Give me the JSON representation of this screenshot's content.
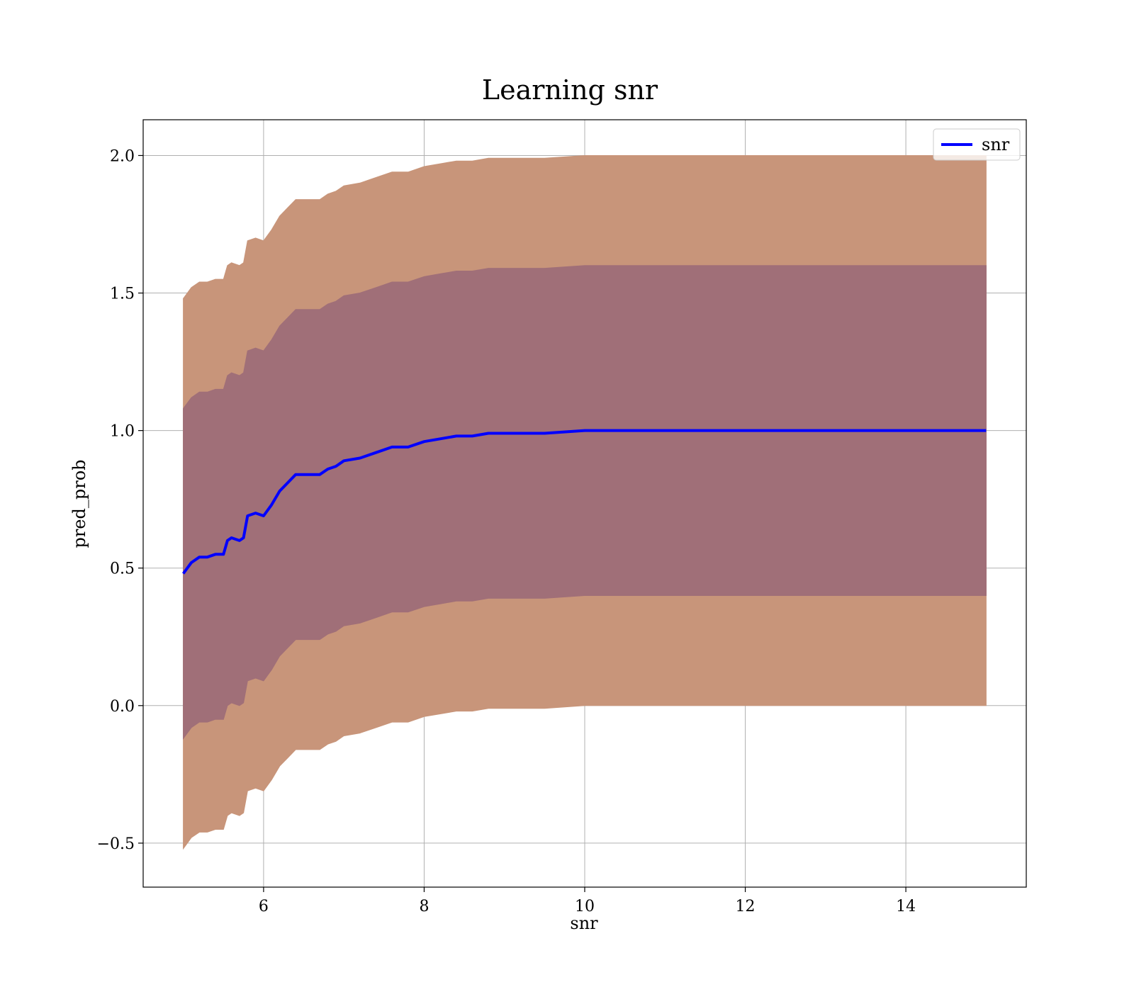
{
  "chart_data": {
    "type": "area",
    "title": "Learning snr",
    "xlabel": "snr",
    "ylabel": "pred_prob",
    "xlim": [
      4.5,
      15.5
    ],
    "ylim": [
      -0.66,
      2.13
    ],
    "xticks": [
      6,
      8,
      10,
      12,
      14
    ],
    "xtick_labels": [
      "6",
      "8",
      "10",
      "12",
      "14"
    ],
    "yticks": [
      -0.5,
      0.0,
      0.5,
      1.0,
      1.5,
      2.0
    ],
    "ytick_labels": [
      "−0.5",
      "0.0",
      "0.5",
      "1.0",
      "1.5",
      "2.0"
    ],
    "grid": true,
    "legend": {
      "position": "upper right",
      "entries": [
        "snr"
      ]
    },
    "colors": {
      "line": "#0000ff",
      "outer_band": "#c8957a",
      "inner_band": "#a06f78",
      "grid": "#b0b0b0"
    },
    "series": [
      {
        "name": "snr",
        "x": [
          5.0,
          5.05,
          5.1,
          5.2,
          5.3,
          5.4,
          5.5,
          5.55,
          5.6,
          5.7,
          5.75,
          5.8,
          5.9,
          6.0,
          6.1,
          6.2,
          6.3,
          6.4,
          6.5,
          6.6,
          6.7,
          6.8,
          6.9,
          7.0,
          7.2,
          7.4,
          7.6,
          7.8,
          8.0,
          8.2,
          8.4,
          8.6,
          8.8,
          9.0,
          9.5,
          10.0,
          10.5,
          11.0,
          11.5,
          12.0,
          12.5,
          13.0,
          13.5,
          14.0,
          14.5,
          15.0
        ],
        "y": [
          0.48,
          0.5,
          0.52,
          0.54,
          0.54,
          0.55,
          0.55,
          0.6,
          0.61,
          0.6,
          0.61,
          0.69,
          0.7,
          0.69,
          0.73,
          0.78,
          0.81,
          0.84,
          0.84,
          0.84,
          0.84,
          0.86,
          0.87,
          0.89,
          0.9,
          0.92,
          0.94,
          0.94,
          0.96,
          0.97,
          0.98,
          0.98,
          0.99,
          0.99,
          0.99,
          1.0,
          1.0,
          1.0,
          1.0,
          1.0,
          1.0,
          1.0,
          1.0,
          1.0,
          1.0,
          1.0
        ]
      }
    ],
    "bands": [
      {
        "level": "outer",
        "offset": 1.0
      },
      {
        "level": "inner",
        "offset": 0.6
      }
    ]
  }
}
